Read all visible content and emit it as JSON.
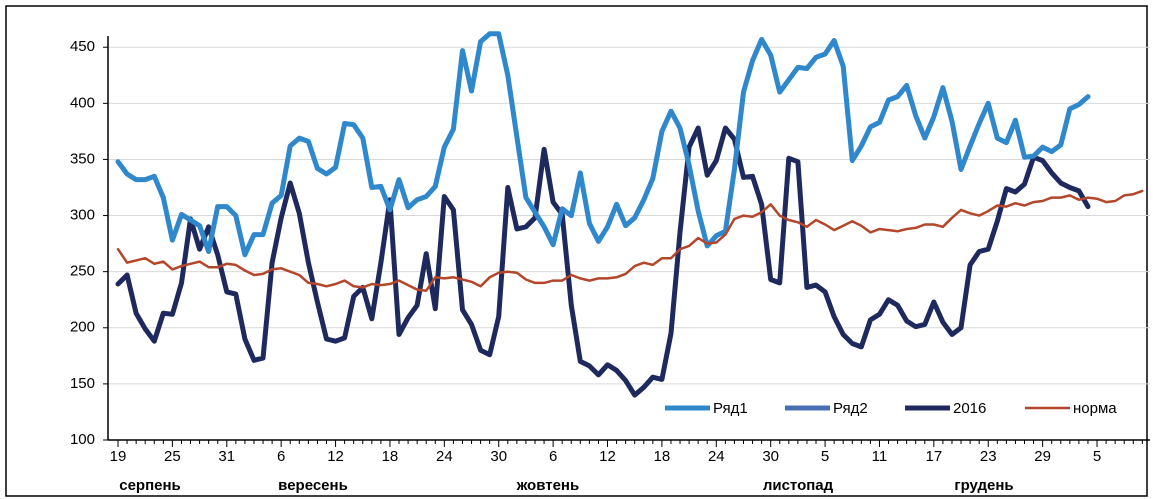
{
  "chart_data": {
    "type": "line",
    "categories": [
      "19",
      null,
      null,
      null,
      null,
      null,
      "25",
      null,
      null,
      null,
      null,
      null,
      "31",
      null,
      null,
      null,
      null,
      null,
      "6",
      null,
      null,
      null,
      null,
      null,
      "12",
      null,
      null,
      null,
      null,
      null,
      "18",
      null,
      null,
      null,
      null,
      null,
      "24",
      null,
      null,
      null,
      null,
      null,
      "30",
      null,
      null,
      null,
      null,
      null,
      "6",
      null,
      null,
      null,
      null,
      null,
      "12",
      null,
      null,
      null,
      null,
      null,
      "18",
      null,
      null,
      null,
      null,
      null,
      "24",
      null,
      null,
      null,
      null,
      null,
      "30",
      null,
      null,
      null,
      null,
      null,
      "5",
      null,
      null,
      null,
      null,
      null,
      "11",
      null,
      null,
      null,
      null,
      null,
      "17",
      null,
      null,
      null,
      null,
      null,
      "23",
      null,
      null,
      null,
      null,
      null,
      "29",
      null,
      null,
      null,
      null,
      null,
      "5",
      null,
      null,
      null,
      null,
      null
    ],
    "months": [
      "серпень",
      "вересень",
      "жовтень",
      "листопад",
      "грудень"
    ],
    "series": [
      {
        "name": "Ряд1",
        "color": "#2f87cc",
        "values": [
          348,
          337,
          332,
          332,
          335,
          316,
          278,
          301,
          296,
          291,
          268,
          308,
          308,
          300,
          265,
          283,
          283,
          311,
          318,
          362,
          369,
          366,
          342,
          337,
          343,
          382,
          381,
          369,
          325,
          326,
          305,
          332,
          307,
          314,
          317,
          326,
          361,
          377,
          447,
          411,
          455,
          462,
          462,
          425,
          370,
          316,
          303,
          290,
          274,
          306,
          300,
          338,
          293,
          277,
          290,
          310,
          291,
          298,
          314,
          333,
          375,
          393,
          378,
          345,
          304,
          273,
          282,
          286,
          341,
          410,
          438,
          457,
          443,
          410,
          421,
          432,
          431,
          441,
          444,
          456,
          433,
          349,
          362,
          379,
          383,
          403,
          406,
          416,
          389,
          369,
          388,
          414,
          384,
          341,
          362,
          382,
          400,
          369,
          365,
          385,
          352,
          353,
          361,
          357,
          363,
          395,
          399,
          406,
          null,
          null,
          null,
          null,
          null,
          null
        ]
      },
      {
        "name": "Ряд2",
        "color": "#4a6fb5",
        "values": [
          null,
          null,
          null,
          null,
          null,
          null,
          null,
          null,
          null,
          null,
          null,
          null,
          null,
          null,
          null,
          null,
          null,
          null,
          null,
          null,
          null,
          null,
          null,
          null,
          null,
          null,
          null,
          null,
          null,
          null,
          null,
          null,
          null,
          null,
          null,
          null,
          null,
          null,
          null,
          null,
          null,
          null,
          null,
          null,
          null,
          null,
          null,
          null,
          null,
          null,
          null,
          null,
          null,
          null,
          null,
          null,
          null,
          null,
          null,
          null,
          null,
          null,
          null,
          null,
          null,
          null,
          null,
          null,
          null,
          null,
          null,
          null,
          null,
          null,
          null,
          null,
          null,
          null,
          null,
          null,
          null,
          null,
          null,
          null,
          null,
          null,
          null,
          null,
          null,
          null,
          null,
          null,
          null,
          null,
          null,
          null,
          null,
          null,
          null,
          null,
          null,
          null,
          null,
          null,
          null,
          null,
          null,
          null,
          null,
          null,
          null,
          null,
          null,
          null
        ]
      },
      {
        "name": "2016",
        "color": "#1e2a5e",
        "values": [
          239,
          247,
          213,
          199,
          188,
          213,
          212,
          240,
          297,
          270,
          290,
          265,
          232,
          230,
          190,
          171,
          173,
          258,
          298,
          329,
          302,
          258,
          223,
          190,
          188,
          191,
          228,
          236,
          208,
          258,
          314,
          194,
          209,
          220,
          266,
          217,
          317,
          305,
          216,
          203,
          180,
          176,
          210,
          325,
          288,
          290,
          298,
          359,
          312,
          301,
          220,
          170,
          166,
          158,
          167,
          162,
          153,
          140,
          147,
          156,
          154,
          195,
          285,
          361,
          378,
          336,
          349,
          378,
          368,
          334,
          335,
          310,
          243,
          240,
          351,
          348,
          236,
          238,
          232,
          210,
          194,
          186,
          183,
          207,
          212,
          225,
          220,
          206,
          201,
          203,
          223,
          205,
          194,
          200,
          256,
          268,
          270,
          295,
          324,
          321,
          328,
          352,
          349,
          338,
          329,
          325,
          322,
          308,
          null,
          null,
          null,
          null,
          null,
          null
        ]
      },
      {
        "name": "норма",
        "color": "#b4462b",
        "values": [
          270,
          258,
          260,
          262,
          257,
          259,
          252,
          255,
          257,
          259,
          254,
          254,
          257,
          256,
          251,
          247,
          248,
          252,
          253,
          250,
          247,
          240,
          239,
          237,
          239,
          242,
          237,
          236,
          239,
          238,
          239,
          242,
          238,
          234,
          233,
          245,
          244,
          245,
          243,
          241,
          237,
          245,
          249,
          250,
          249,
          243,
          240,
          240,
          242,
          242,
          247,
          244,
          242,
          244,
          244,
          245,
          248,
          255,
          258,
          256,
          262,
          262,
          270,
          273,
          280,
          275,
          276,
          283,
          297,
          300,
          299,
          303,
          310,
          300,
          296,
          294,
          290,
          296,
          292,
          287,
          291,
          295,
          291,
          285,
          288,
          287,
          286,
          288,
          289,
          292,
          292,
          290,
          298,
          305,
          302,
          300,
          304,
          309,
          308,
          311,
          309,
          312,
          313,
          316,
          316,
          318,
          314,
          316,
          315,
          312,
          313,
          318,
          319,
          322
        ]
      }
    ],
    "ylim": [
      100,
      460
    ],
    "yticks": [
      100,
      150,
      200,
      250,
      300,
      350,
      400,
      450
    ],
    "grid": true,
    "legend": "lower right"
  }
}
